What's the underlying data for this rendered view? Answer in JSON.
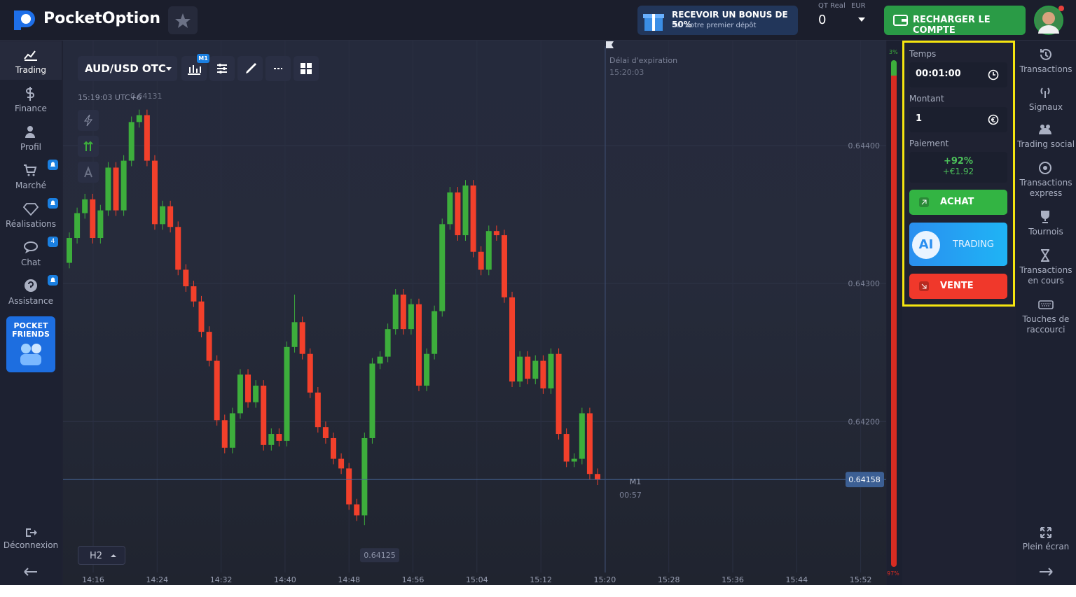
{
  "header": {
    "logo": "PocketOption",
    "bonus_title": "RECEVOIR UN BONUS DE 50%",
    "bonus_subtitle": "Sur votre premier dépôt",
    "account_type": "QT Real",
    "currency": "EUR",
    "balance": "0",
    "recharge": "RECHARGER LE COMPTE"
  },
  "left_menu": {
    "items": [
      "Trading",
      "Finance",
      "Profil",
      "Marché",
      "Réalisations",
      "Chat",
      "Assistance"
    ],
    "chat_badge": "4",
    "promo": [
      "POCKET",
      "FRIENDS"
    ],
    "logout": "Déconnexion"
  },
  "toolbar": {
    "asset": "AUD/USD OTC",
    "timeframe_badge": "M1",
    "timeframe": "H2"
  },
  "chart_data": {
    "type": "candlestick",
    "up_color": "#3dae3c",
    "down_color": "#f2402b",
    "ylim": [
      0.64082,
      0.64475
    ],
    "yticks": [
      {
        "value": 0.644,
        "label": "0.64400"
      },
      {
        "value": 0.643,
        "label": "0.64300"
      },
      {
        "value": 0.642,
        "label": "0.64200"
      }
    ],
    "time_labels": [
      "14:16",
      "14:24",
      "14:32",
      "14:40",
      "14:48",
      "14:56",
      "15:04",
      "15:12",
      "15:20",
      "15:28",
      "15:36",
      "15:44",
      "15:52"
    ],
    "candles": {
      "open": [
        0.64315,
        0.64333,
        0.64351,
        0.64361,
        0.64333,
        0.64353,
        0.64384,
        0.64353,
        0.64389,
        0.64417,
        0.64422,
        0.64389,
        0.64343,
        0.64356,
        0.64341,
        0.6431,
        0.64298,
        0.64287,
        0.64265,
        0.64244,
        0.64201,
        0.64181,
        0.64206,
        0.64234,
        0.64214,
        0.64226,
        0.64183,
        0.64191,
        0.64186,
        0.64254,
        0.64272,
        0.64249,
        0.64221,
        0.64196,
        0.64188,
        0.64173,
        0.64166,
        0.6414,
        0.64132,
        0.64188,
        0.64242,
        0.64247,
        0.64267,
        0.64292,
        0.64267,
        0.64285,
        0.64226,
        0.64249,
        0.6428,
        0.64343,
        0.64366,
        0.64335,
        0.64371,
        0.64323,
        0.6431,
        0.64338,
        0.64335,
        0.6429,
        0.64229,
        0.64247,
        0.64231,
        0.64244,
        0.64224,
        0.64249,
        0.64191,
        0.64171,
        0.64173,
        0.64206,
        0.64162
      ],
      "close": [
        0.64333,
        0.64351,
        0.64361,
        0.64333,
        0.64353,
        0.64384,
        0.64353,
        0.64389,
        0.64417,
        0.64422,
        0.64389,
        0.64343,
        0.64356,
        0.64341,
        0.6431,
        0.64298,
        0.64287,
        0.64265,
        0.64244,
        0.64201,
        0.64181,
        0.64206,
        0.64234,
        0.64214,
        0.64226,
        0.64183,
        0.64191,
        0.64186,
        0.64254,
        0.64272,
        0.64249,
        0.64221,
        0.64196,
        0.64188,
        0.64173,
        0.64166,
        0.6414,
        0.64132,
        0.64188,
        0.64242,
        0.64247,
        0.64267,
        0.64292,
        0.64267,
        0.64285,
        0.64226,
        0.64249,
        0.6428,
        0.64343,
        0.64366,
        0.64335,
        0.64371,
        0.64323,
        0.6431,
        0.64338,
        0.64335,
        0.6429,
        0.64229,
        0.64247,
        0.64231,
        0.64244,
        0.64224,
        0.64249,
        0.64191,
        0.64171,
        0.64173,
        0.64206,
        0.64162,
        0.64158
      ],
      "high": [
        0.64337,
        0.64355,
        0.64365,
        0.64365,
        0.64357,
        0.64388,
        0.64388,
        0.64393,
        0.64421,
        0.64426,
        0.64426,
        0.64393,
        0.6436,
        0.6436,
        0.64345,
        0.64314,
        0.64302,
        0.64291,
        0.64269,
        0.64248,
        0.64205,
        0.6421,
        0.64238,
        0.64238,
        0.6423,
        0.6423,
        0.64195,
        0.64195,
        0.64258,
        0.64292,
        0.64276,
        0.64253,
        0.64225,
        0.642,
        0.64192,
        0.64177,
        0.6417,
        0.64144,
        0.64192,
        0.64246,
        0.64251,
        0.64271,
        0.64296,
        0.64296,
        0.64289,
        0.64289,
        0.64253,
        0.64284,
        0.64347,
        0.6437,
        0.6437,
        0.64375,
        0.64375,
        0.64327,
        0.64342,
        0.64342,
        0.64339,
        0.64294,
        0.64251,
        0.64251,
        0.64248,
        0.64248,
        0.64253,
        0.64253,
        0.64195,
        0.64177,
        0.6421,
        0.6421,
        0.64166
      ],
      "low": [
        0.64311,
        0.64329,
        0.64347,
        0.64329,
        0.64329,
        0.64349,
        0.64349,
        0.64349,
        0.64385,
        0.64413,
        0.64385,
        0.64339,
        0.64339,
        0.64337,
        0.64306,
        0.64294,
        0.64283,
        0.64261,
        0.6424,
        0.64197,
        0.64177,
        0.64177,
        0.64202,
        0.6421,
        0.6421,
        0.64179,
        0.64179,
        0.64182,
        0.64182,
        0.6425,
        0.64245,
        0.64217,
        0.64192,
        0.64184,
        0.64169,
        0.64162,
        0.64136,
        0.64128,
        0.64125,
        0.64184,
        0.64238,
        0.64243,
        0.64263,
        0.64263,
        0.64263,
        0.64222,
        0.64222,
        0.64245,
        0.64276,
        0.64339,
        0.64331,
        0.64331,
        0.64319,
        0.64306,
        0.64306,
        0.64331,
        0.64286,
        0.64225,
        0.64225,
        0.64227,
        0.64227,
        0.6422,
        0.6422,
        0.64187,
        0.64167,
        0.64167,
        0.64169,
        0.64158,
        0.64154
      ]
    },
    "current_price": {
      "value": 0.64158,
      "label": "0.64158"
    },
    "low_marker": {
      "value": 0.64125,
      "label": "0.64125"
    },
    "cursor_time": "15:19:03 UTC+6",
    "cursor_price": "0.64131",
    "expiration_label": "Délai d'expiration",
    "expiration_time": "15:20:03",
    "timer_label": "M1",
    "timer": "00:57",
    "sentiment": {
      "up": {
        "value": 3,
        "label": "3%"
      },
      "down": {
        "value": 97,
        "label": "97%"
      }
    }
  },
  "trade_panel": {
    "time_label": "Temps",
    "time": "00:01:00",
    "amount_label": "Montant",
    "amount": "1",
    "payout_label": "Paiement",
    "payout_pct": "+92%",
    "payout_value": "+€1.92",
    "buy": "ACHAT",
    "ai": "AI",
    "ai_label": "TRADING",
    "sell": "VENTE"
  },
  "right_menu": {
    "items": [
      [
        "Transactions"
      ],
      [
        "Signaux"
      ],
      [
        "Trading social"
      ],
      [
        "Transactions",
        "express"
      ],
      [
        "Tournois"
      ],
      [
        "Transactions",
        "en cours"
      ],
      [
        "Touches de",
        "raccourci"
      ]
    ],
    "fullscreen": "Plein écran"
  }
}
